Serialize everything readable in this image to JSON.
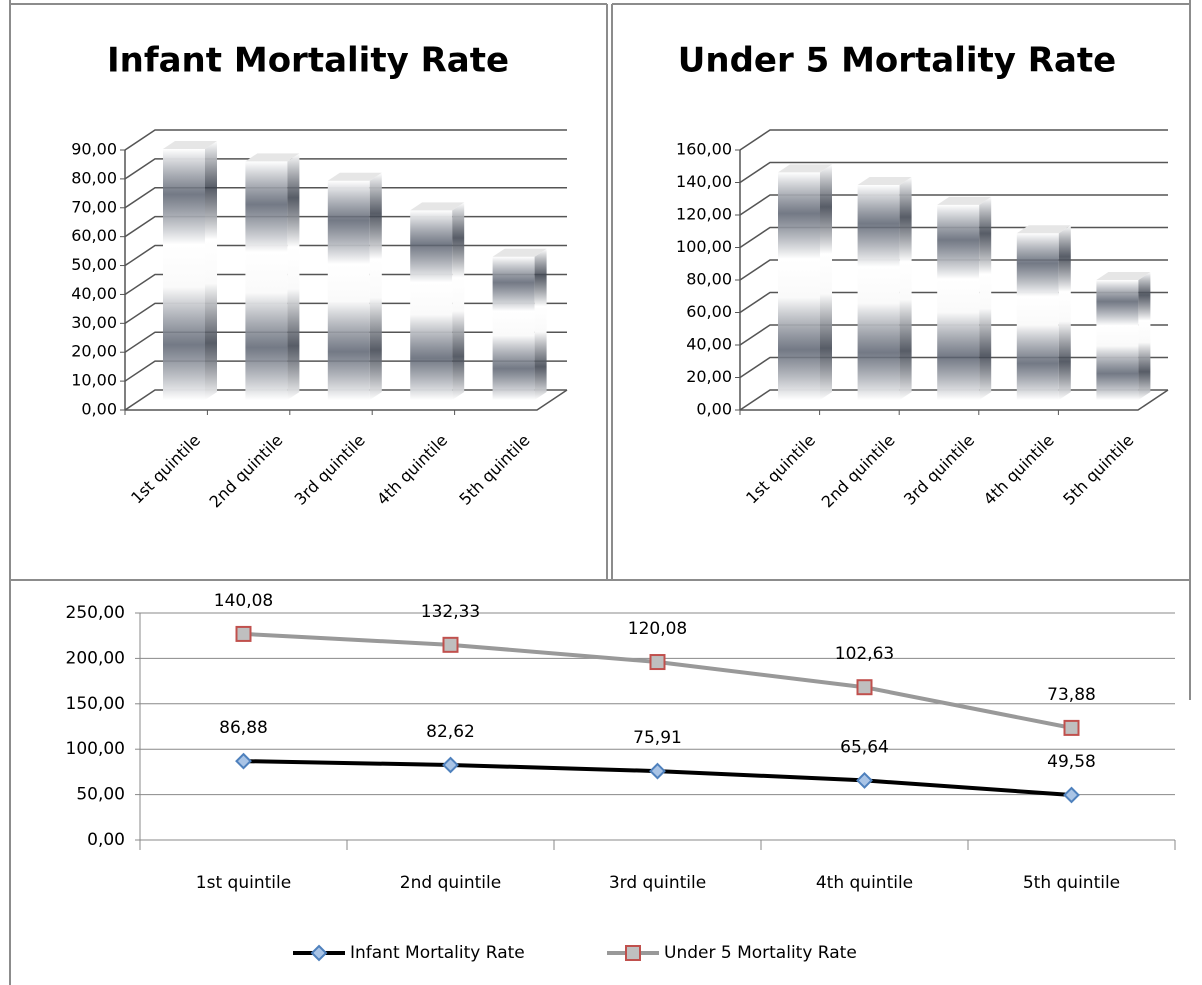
{
  "chart_data": [
    {
      "type": "bar3d",
      "title": "Infant Mortality Rate",
      "categories": [
        "1st quintile",
        "2nd quintile",
        "3rd quintile",
        "4th quintile",
        "5th quintile"
      ],
      "values": [
        86.88,
        82.62,
        75.91,
        65.64,
        49.58
      ],
      "color": "#5b6270",
      "ylim": [
        0,
        90
      ],
      "yticks": [
        {
          "value": 0,
          "label": "0,00"
        },
        {
          "value": 10,
          "label": "10,00"
        },
        {
          "value": 20,
          "label": "20,00"
        },
        {
          "value": 30,
          "label": "30,00"
        },
        {
          "value": 40,
          "label": "40,00"
        },
        {
          "value": 50,
          "label": "50,00"
        },
        {
          "value": 60,
          "label": "60,00"
        },
        {
          "value": 70,
          "label": "70,00"
        },
        {
          "value": 80,
          "label": "80,00"
        },
        {
          "value": 90,
          "label": "90,00"
        }
      ],
      "grid": true
    },
    {
      "type": "bar3d",
      "title": "Under 5 Mortality Rate",
      "categories": [
        "1st quintile",
        "2nd quintile",
        "3rd quintile",
        "4th quintile",
        "5th quintile"
      ],
      "values": [
        140.08,
        132.33,
        120.08,
        102.63,
        73.88
      ],
      "color": "#5b6270",
      "ylim": [
        0,
        160
      ],
      "yticks": [
        {
          "value": 0,
          "label": "0,00"
        },
        {
          "value": 20,
          "label": "20,00"
        },
        {
          "value": 40,
          "label": "40,00"
        },
        {
          "value": 60,
          "label": "60,00"
        },
        {
          "value": 80,
          "label": "80,00"
        },
        {
          "value": 100,
          "label": "100,00"
        },
        {
          "value": 120,
          "label": "120,00"
        },
        {
          "value": 140,
          "label": "140,00"
        },
        {
          "value": 160,
          "label": "160,00"
        }
      ],
      "grid": true
    },
    {
      "type": "line",
      "stacked": true,
      "legend": "bottom",
      "categories": [
        "1st quintile",
        "2nd quintile",
        "3rd quintile",
        "4th quintile",
        "5th quintile"
      ],
      "series": [
        {
          "name": "Infant Mortality Rate",
          "color": "#000000",
          "marker": "diamond",
          "marker_color": "#4f81bd",
          "values": [
            86.88,
            82.62,
            75.91,
            65.64,
            49.58
          ],
          "value_labels": [
            "86,88",
            "82,62",
            "75,91",
            "65,64",
            "49,58"
          ]
        },
        {
          "name": "Under 5 Mortality Rate",
          "color": "#999999",
          "marker": "square",
          "marker_color": "#c0504d",
          "values": [
            140.08,
            132.33,
            120.08,
            102.63,
            73.88
          ],
          "value_labels": [
            "140,08",
            "132,33",
            "120,08",
            "102,63",
            "73,88"
          ]
        }
      ],
      "ylim": [
        0,
        250
      ],
      "yticks": [
        {
          "value": 0,
          "label": "0,00"
        },
        {
          "value": 50,
          "label": "50,00"
        },
        {
          "value": 100,
          "label": "100,00"
        },
        {
          "value": 150,
          "label": "150,00"
        },
        {
          "value": 200,
          "label": "200,00"
        },
        {
          "value": 250,
          "label": "250,00"
        }
      ],
      "grid": true
    }
  ]
}
